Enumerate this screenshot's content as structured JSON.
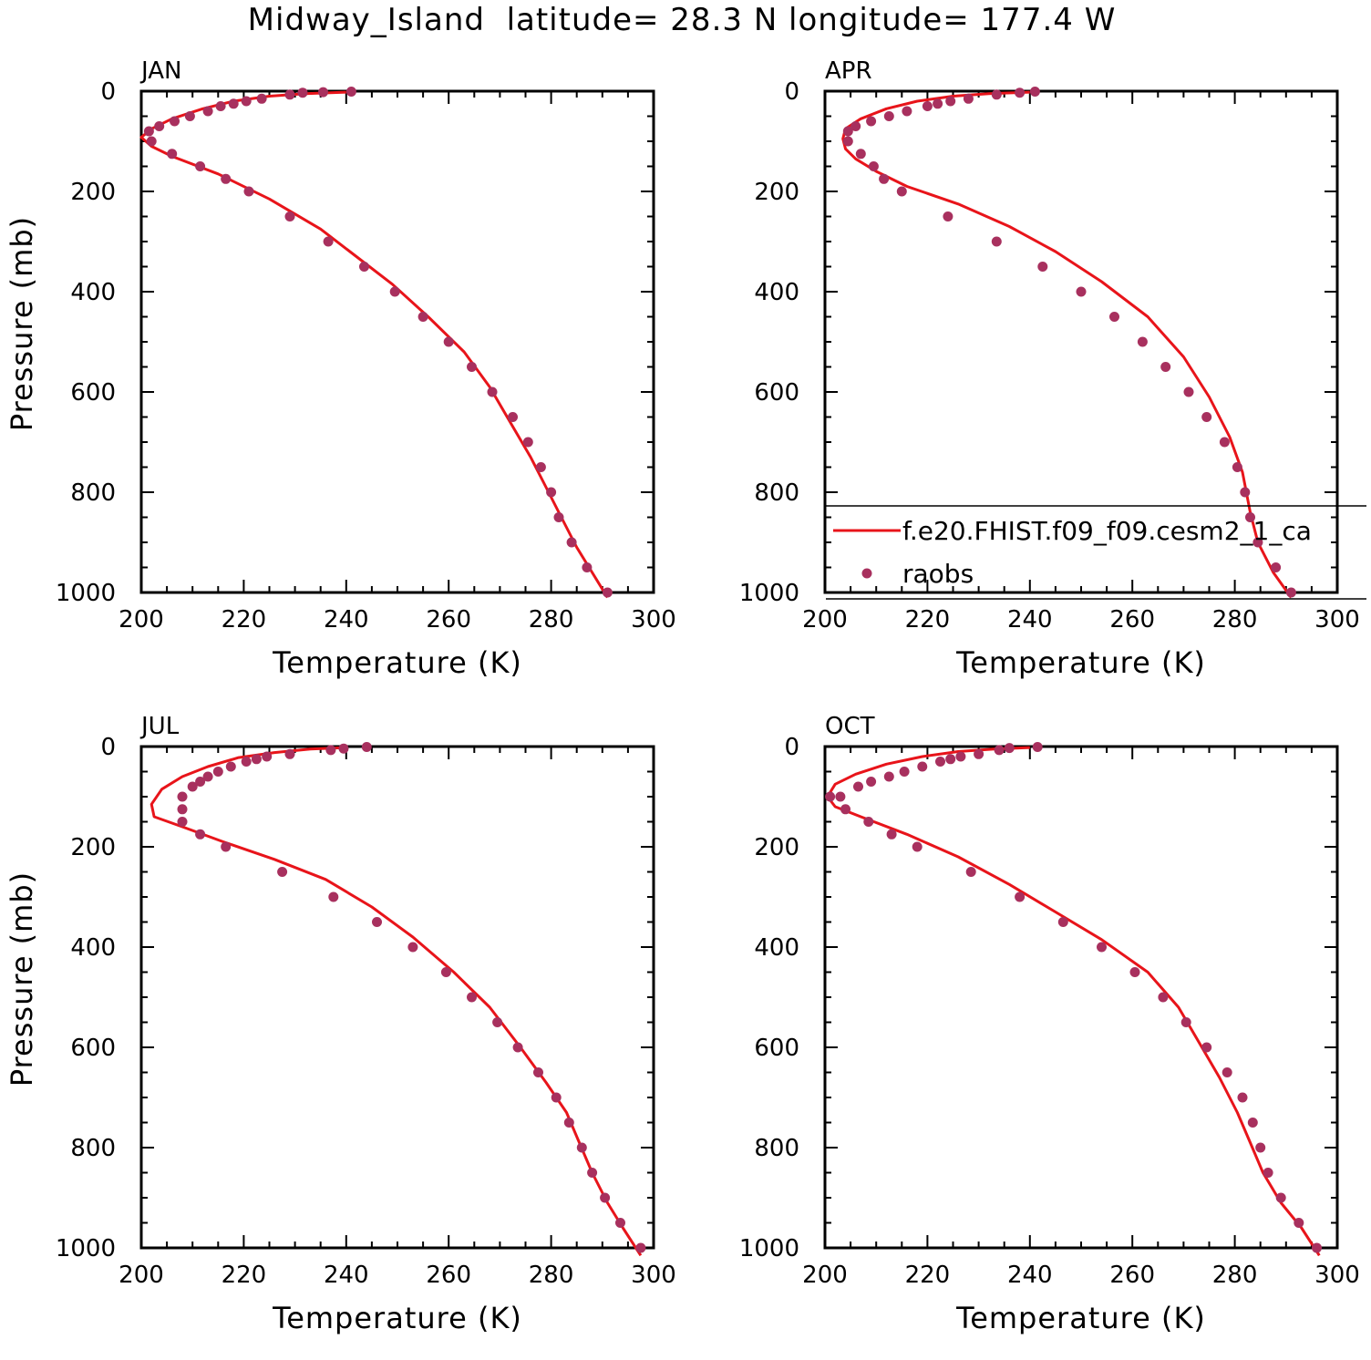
{
  "figure_title": "Midway_Island  latitude= 28.3 N longitude= 177.4 W",
  "colors": {
    "model": "#e8141a",
    "obs": "#a8305e",
    "axis": "#000000"
  },
  "legend": {
    "model_label": "f.e20.FHIST.f09_f09.cesm2_1_ca",
    "obs_label": "raobs"
  },
  "chart_data": [
    {
      "type": "line",
      "panel": "JAN",
      "xlabel": "Temperature (K)",
      "ylabel": "Pressure (mb)",
      "xlim": [
        200,
        300
      ],
      "ylim": [
        1000,
        0
      ],
      "xticks": [
        200,
        220,
        240,
        260,
        280,
        300
      ],
      "yticks": [
        0,
        200,
        400,
        600,
        800,
        1000
      ],
      "series": [
        {
          "name": "f.e20.FHIST.f09_f09.cesm2_1_ca",
          "kind": "line",
          "x": [
            240,
            232,
            225,
            218,
            212,
            206,
            202,
            200,
            202,
            206,
            215,
            225,
            235,
            242,
            249,
            256,
            263,
            268,
            272,
            276,
            279,
            282,
            285,
            288,
            291
          ],
          "y": [
            2,
            5,
            10,
            20,
            35,
            55,
            75,
            92,
            110,
            130,
            165,
            215,
            275,
            330,
            385,
            450,
            520,
            590,
            660,
            730,
            790,
            850,
            910,
            960,
            1010
          ]
        },
        {
          "name": "raobs",
          "kind": "scatter",
          "x": [
            241,
            235.5,
            231.5,
            229,
            223.5,
            220.5,
            218,
            215.5,
            213,
            209.5,
            206.5,
            203.5,
            201.5,
            202,
            206,
            211.5,
            216.5,
            221,
            229,
            236.5,
            243.5,
            249.5,
            255,
            260,
            264.5,
            268.5,
            272.5,
            275.5,
            278,
            280,
            281.5,
            284,
            287,
            291
          ],
          "y": [
            1,
            2,
            3,
            7,
            15,
            20,
            25,
            30,
            40,
            50,
            60,
            70,
            80,
            100,
            125,
            150,
            175,
            200,
            250,
            300,
            350,
            400,
            450,
            500,
            550,
            600,
            650,
            700,
            750,
            800,
            850,
            900,
            950,
            1000
          ]
        }
      ]
    },
    {
      "type": "line",
      "panel": "APR",
      "xlabel": "Temperature (K)",
      "ylabel": "",
      "xlim": [
        200,
        300
      ],
      "ylim": [
        1000,
        0
      ],
      "xticks": [
        200,
        220,
        240,
        260,
        280,
        300
      ],
      "yticks": [
        0,
        200,
        400,
        600,
        800,
        1000
      ],
      "series": [
        {
          "name": "f.e20.FHIST.f09_f09.cesm2_1_ca",
          "kind": "line",
          "x": [
            240,
            232,
            225,
            218,
            212,
            207,
            204,
            203.5,
            204,
            206,
            210,
            216,
            226,
            236,
            245,
            254,
            263,
            270,
            275,
            279,
            281.5,
            283,
            284.5,
            287.5,
            291
          ],
          "y": [
            2,
            5,
            10,
            20,
            35,
            55,
            75,
            95,
            115,
            135,
            160,
            190,
            225,
            270,
            320,
            380,
            450,
            530,
            610,
            690,
            760,
            840,
            900,
            960,
            1010
          ]
        },
        {
          "name": "raobs",
          "kind": "scatter",
          "x": [
            241,
            238,
            233.5,
            228,
            224.5,
            222,
            220,
            216,
            212.5,
            209,
            206,
            204.5,
            204.5,
            207,
            209.5,
            211.5,
            215,
            224,
            233.5,
            242.5,
            250,
            256.5,
            262,
            266.5,
            271,
            274.5,
            278,
            280.5,
            282,
            283,
            284.5,
            288,
            291
          ],
          "y": [
            1,
            3,
            7,
            15,
            20,
            25,
            30,
            40,
            50,
            60,
            70,
            80,
            100,
            125,
            150,
            175,
            200,
            250,
            300,
            350,
            400,
            450,
            500,
            550,
            600,
            650,
            700,
            750,
            800,
            850,
            900,
            950,
            1000
          ]
        }
      ]
    },
    {
      "type": "line",
      "panel": "JUL",
      "xlabel": "Temperature (K)",
      "ylabel": "Pressure (mb)",
      "xlim": [
        200,
        300
      ],
      "ylim": [
        1000,
        0
      ],
      "xticks": [
        200,
        220,
        240,
        260,
        280,
        300
      ],
      "yticks": [
        0,
        200,
        400,
        600,
        800,
        1000
      ],
      "series": [
        {
          "name": "f.e20.FHIST.f09_f09.cesm2_1_ca",
          "kind": "line",
          "x": [
            240,
            233,
            226,
            219,
            213,
            208,
            204,
            202,
            202.5,
            208,
            216,
            226,
            236,
            245,
            253,
            261,
            268,
            274,
            279,
            283,
            285.5,
            288,
            291,
            294,
            297.5
          ],
          "y": [
            2,
            5,
            12,
            22,
            40,
            60,
            85,
            115,
            140,
            160,
            190,
            225,
            265,
            320,
            380,
            450,
            520,
            600,
            670,
            730,
            790,
            850,
            910,
            960,
            1015
          ]
        },
        {
          "name": "raobs",
          "kind": "scatter",
          "x": [
            244,
            239.5,
            237,
            229,
            224.5,
            222.5,
            220.5,
            217.5,
            215,
            213,
            211.5,
            210,
            208,
            208,
            208,
            211.5,
            216.5,
            227.5,
            237.5,
            246,
            253,
            259.5,
            264.5,
            269.5,
            273.5,
            277.5,
            281,
            283.5,
            286,
            288,
            290.5,
            293.5,
            297.5
          ],
          "y": [
            1,
            4,
            7,
            15,
            20,
            25,
            30,
            40,
            50,
            60,
            70,
            80,
            100,
            125,
            150,
            175,
            200,
            250,
            300,
            350,
            400,
            450,
            500,
            550,
            600,
            650,
            700,
            750,
            800,
            850,
            900,
            950,
            1000
          ]
        }
      ]
    },
    {
      "type": "line",
      "panel": "OCT",
      "xlabel": "Temperature (K)",
      "ylabel": "",
      "xlim": [
        200,
        300
      ],
      "ylim": [
        1000,
        0
      ],
      "xticks": [
        200,
        220,
        240,
        260,
        280,
        300
      ],
      "yticks": [
        0,
        200,
        400,
        600,
        800,
        1000
      ],
      "series": [
        {
          "name": "f.e20.FHIST.f09_f09.cesm2_1_ca",
          "kind": "line",
          "x": [
            240,
            233,
            226,
            219,
            212,
            206,
            202,
            200.5,
            202,
            207,
            216,
            226,
            236,
            245,
            254,
            263,
            269,
            273,
            277,
            280.5,
            283,
            285.5,
            289,
            293,
            296.5
          ],
          "y": [
            2,
            5,
            10,
            20,
            35,
            55,
            75,
            100,
            120,
            140,
            175,
            220,
            275,
            330,
            385,
            450,
            520,
            590,
            660,
            730,
            790,
            850,
            910,
            960,
            1015
          ]
        },
        {
          "name": "raobs",
          "kind": "scatter",
          "x": [
            241.5,
            236,
            234,
            230,
            226.5,
            224.5,
            222.5,
            219,
            215.5,
            212.5,
            209,
            206.5,
            203,
            201,
            204,
            208.5,
            213,
            218,
            228.5,
            238,
            246.5,
            254,
            260.5,
            266,
            270.5,
            274.5,
            278.5,
            281.5,
            283.5,
            285,
            286.5,
            289,
            292.5,
            296
          ],
          "y": [
            1,
            3,
            7,
            15,
            20,
            25,
            30,
            40,
            50,
            60,
            70,
            80,
            100,
            100,
            125,
            150,
            175,
            200,
            250,
            300,
            350,
            400,
            450,
            500,
            550,
            600,
            650,
            700,
            750,
            800,
            850,
            900,
            950,
            1000
          ]
        }
      ]
    }
  ]
}
